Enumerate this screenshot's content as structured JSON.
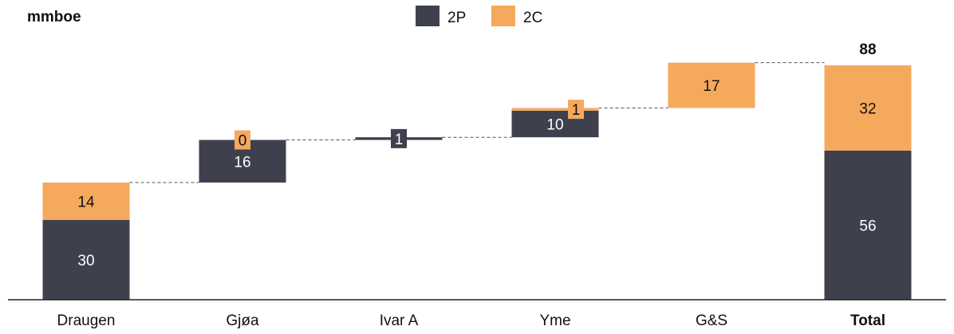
{
  "chart_data": {
    "type": "bar",
    "subtype": "waterfall",
    "unit_label": "mmboe",
    "categories": [
      "Draugen",
      "Gjøa",
      "Ivar A",
      "Yme",
      "G&S",
      "Total"
    ],
    "bold_categories": [
      "Total"
    ],
    "series": [
      {
        "name": "2P",
        "color": "#3F404E",
        "values": [
          30,
          16,
          1,
          10,
          0,
          56
        ]
      },
      {
        "name": "2C",
        "color": "#F5A95D",
        "values": [
          14,
          0,
          0,
          1,
          17,
          32
        ]
      }
    ],
    "data_labels": {
      "2P": [
        "30",
        "16",
        "1",
        "10",
        "",
        "56"
      ],
      "2C": [
        "14",
        "0",
        "",
        "1",
        "17",
        "32"
      ]
    },
    "total_label": "88",
    "legend": {
      "position": "top-center",
      "entries": [
        "2P",
        "2C"
      ]
    },
    "connectors": "dashed",
    "grid": false,
    "ylim": [
      0,
      94
    ]
  }
}
